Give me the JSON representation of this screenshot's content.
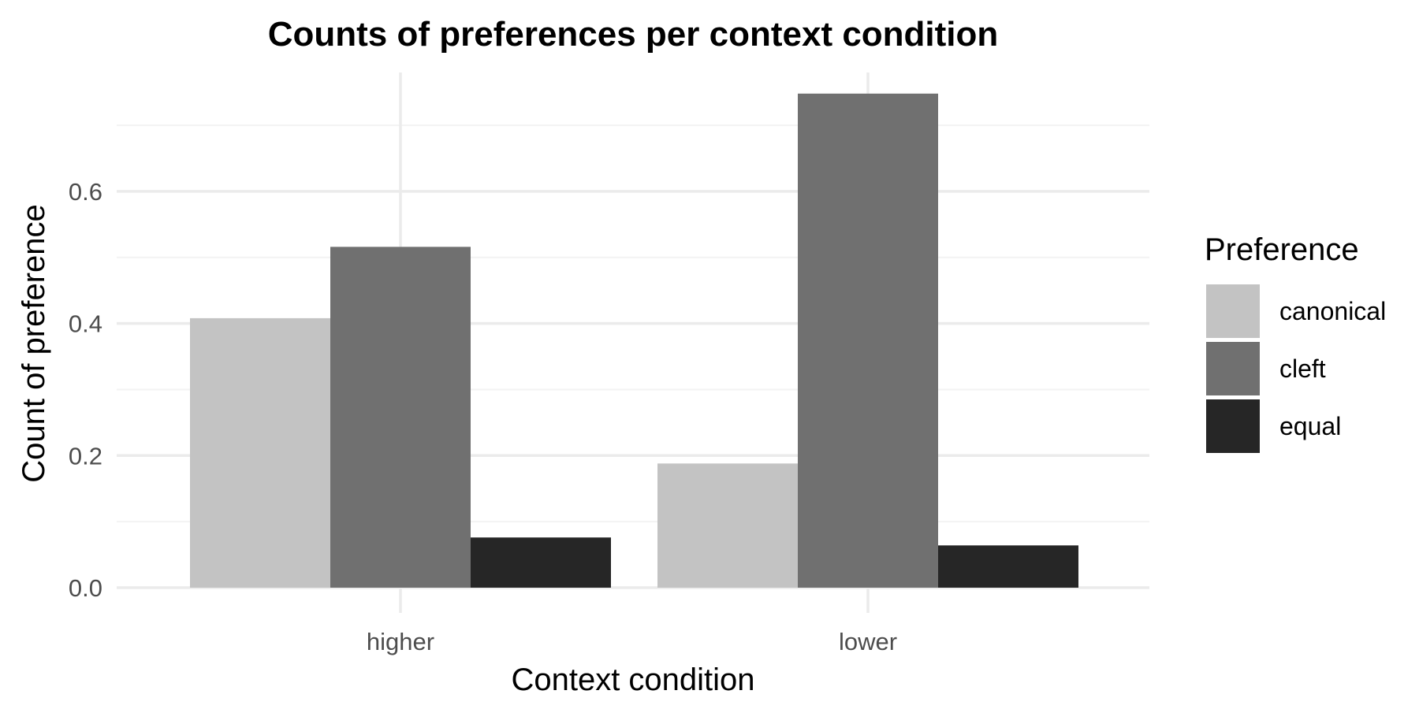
{
  "chart_data": {
    "type": "bar",
    "title": "Counts of preferences per context condition",
    "xlabel": "Context condition",
    "ylabel": "Count of preference",
    "categories": [
      "higher",
      "lower"
    ],
    "series": [
      {
        "name": "canonical",
        "color": "#c3c3c3",
        "values": [
          0.408,
          0.188
        ]
      },
      {
        "name": "cleft",
        "color": "#707070",
        "values": [
          0.516,
          0.748
        ]
      },
      {
        "name": "equal",
        "color": "#262626",
        "values": [
          0.076,
          0.064
        ]
      }
    ],
    "ylim": [
      0,
      0.78
    ],
    "yticks": [
      0.0,
      0.2,
      0.4,
      0.6
    ],
    "ytick_labels": [
      "0.0",
      "0.2",
      "0.4",
      "0.6"
    ],
    "grid": true,
    "legend": {
      "title": "Preference",
      "position": "right"
    },
    "colors": {
      "background": "#ffffff",
      "grid_major": "#ebebeb",
      "grid_minor": "#f3f3f3",
      "tick_text": "#4d4d4d"
    }
  }
}
